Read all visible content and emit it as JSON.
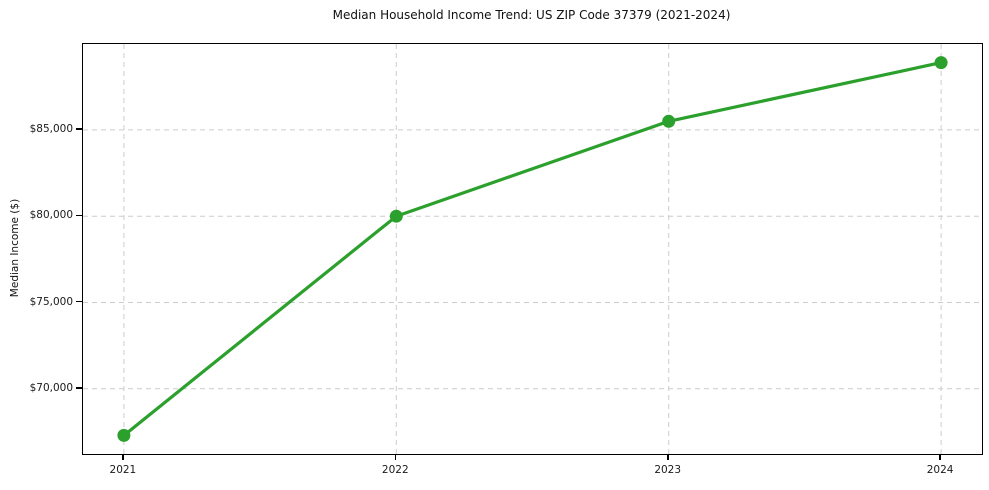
{
  "chart_data": {
    "type": "line",
    "title": "Median Household Income Trend: US ZIP Code 37379 (2021-2024)",
    "xlabel": "",
    "ylabel": "Median Income ($)",
    "x": [
      2021,
      2022,
      2023,
      2024
    ],
    "xtick_labels": [
      "2021",
      "2022",
      "2023",
      "2024"
    ],
    "values": [
      67300,
      80000,
      85500,
      88900
    ],
    "yticks": [
      70000,
      75000,
      80000,
      85000
    ],
    "ytick_labels": [
      "$70,000",
      "$75,000",
      "$80,000",
      "$85,000"
    ],
    "xlim": [
      2020.85,
      2024.15
    ],
    "ylim": [
      66220,
      89980
    ],
    "grid": true,
    "legend": false,
    "marker": "circle",
    "line_color": "#2ca02c",
    "grid_color": "#cccccc"
  }
}
